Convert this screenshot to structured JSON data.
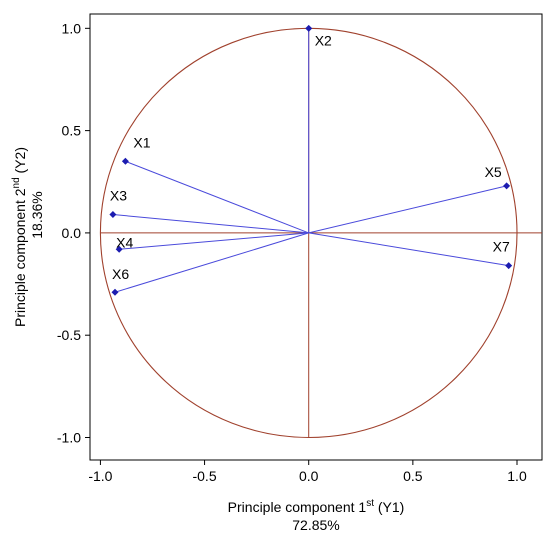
{
  "chart_data": {
    "type": "scatter",
    "subtype": "pca-loading-plot",
    "xlabel_main": "Principle component 1",
    "xlabel_sup": "st",
    "xlabel_suffix": " (Y1)",
    "xlabel_variance": "72.85%",
    "ylabel_main": "Principle component 2",
    "ylabel_sup": "nd",
    "ylabel_suffix": " (Y2)",
    "ylabel_variance": "18.36%",
    "xlim": [
      -1.05,
      1.12
    ],
    "ylim": [
      -1.11,
      1.07
    ],
    "xticks": [
      -1.0,
      -0.5,
      0.0,
      0.5,
      1.0
    ],
    "xtick_labels": [
      "-1.0",
      "-0.5",
      "0.0",
      "0.5",
      "1.0"
    ],
    "yticks": [
      -1.0,
      -0.5,
      0.0,
      0.5,
      1.0
    ],
    "ytick_labels": [
      "-1.0",
      "-0.5",
      "0.0",
      "0.5",
      "1.0"
    ],
    "unit_circle": true,
    "points": [
      {
        "label": "X1",
        "x": -0.88,
        "y": 0.35
      },
      {
        "label": "X2",
        "x": 0.0,
        "y": 1.0
      },
      {
        "label": "X3",
        "x": -0.94,
        "y": 0.09
      },
      {
        "label": "X4",
        "x": -0.91,
        "y": -0.08
      },
      {
        "label": "X5",
        "x": 0.95,
        "y": 0.23
      },
      {
        "label": "X6",
        "x": -0.93,
        "y": -0.29
      },
      {
        "label": "X7",
        "x": 0.96,
        "y": -0.16
      }
    ],
    "colors": {
      "vector": "#4a4adb",
      "marker": "#1c1cb0",
      "circle": "#a0412d",
      "axis": "#a0412d"
    }
  }
}
